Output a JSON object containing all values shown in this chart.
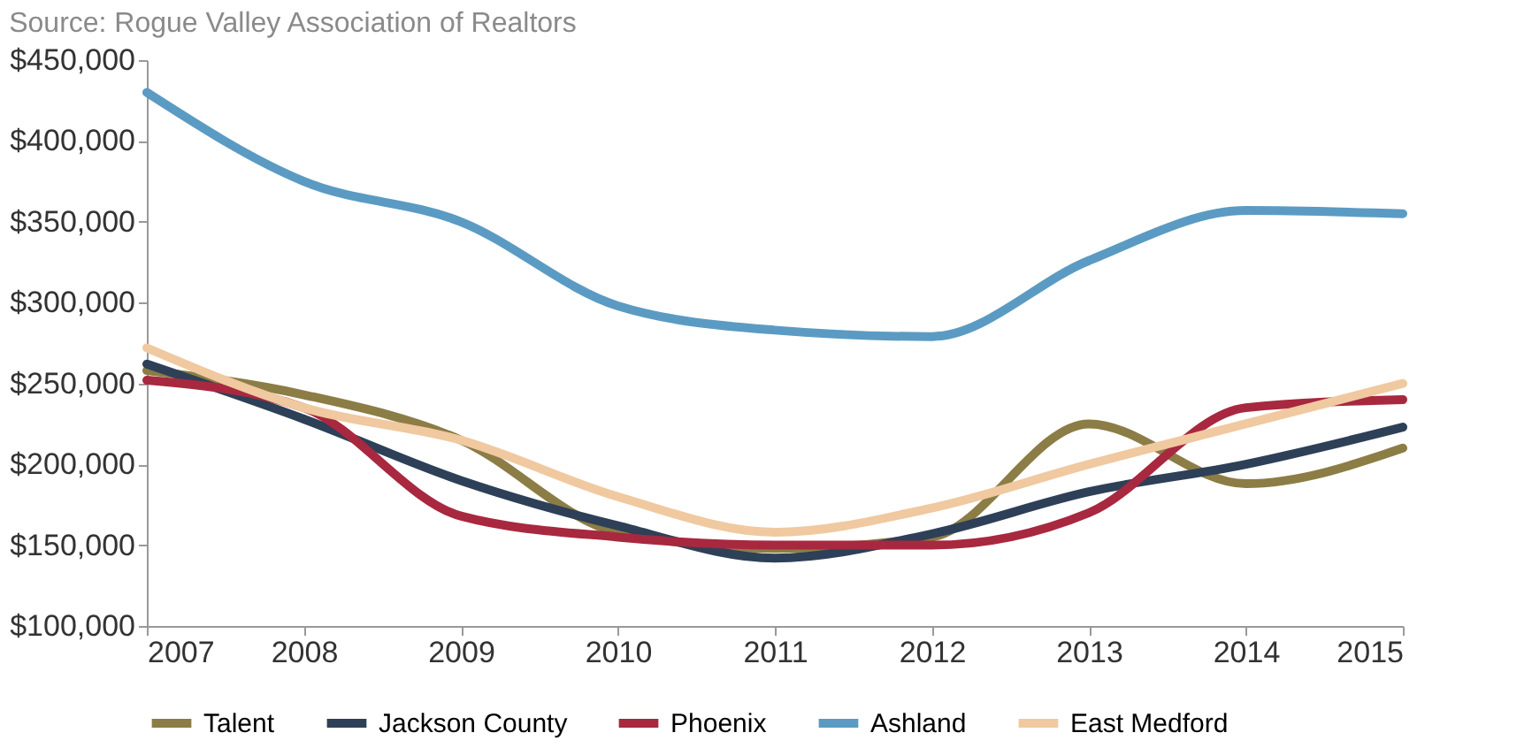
{
  "chart_data": {
    "type": "line",
    "annotations": [
      "Source: Rogue Valley Association of Realtors"
    ],
    "x": [
      2007,
      2008,
      2009,
      2010,
      2011,
      2012,
      2013,
      2014,
      2015
    ],
    "xlim": [
      2007,
      2015
    ],
    "xticks": [
      2007,
      2008,
      2009,
      2010,
      2011,
      2012,
      2013,
      2014,
      2015
    ],
    "ylim": [
      100000,
      450000
    ],
    "yticks": [
      {
        "value": 100000,
        "label": "$100,000"
      },
      {
        "value": 150000,
        "label": "$150,000"
      },
      {
        "value": 200000,
        "label": "$200,000"
      },
      {
        "value": 250000,
        "label": "$250,000"
      },
      {
        "value": 300000,
        "label": "$300,000"
      },
      {
        "value": 350000,
        "label": "$350,000"
      },
      {
        "value": 400000,
        "label": "$400,000"
      },
      {
        "value": 450000,
        "label": "$450,000"
      }
    ],
    "grid": false,
    "legend": "bottom",
    "line_style": "solid",
    "marker": "none",
    "series": [
      {
        "name": "Talent",
        "color": "#8b7d45",
        "values": [
          258000,
          243000,
          215000,
          158000,
          148000,
          155000,
          225000,
          188000,
          210000
        ]
      },
      {
        "name": "Jackson County",
        "color": "#2e4057",
        "values": [
          262000,
          228000,
          190000,
          162000,
          142000,
          157000,
          183000,
          200000,
          223000
        ]
      },
      {
        "name": "Phoenix",
        "color": "#a8283f",
        "values": [
          252000,
          235000,
          168000,
          155000,
          150000,
          150000,
          170000,
          235000,
          240000
        ]
      },
      {
        "name": "Ashland",
        "color": "#5b9bc3",
        "values": [
          430000,
          375000,
          350000,
          298000,
          283000,
          279000,
          326000,
          357000,
          355000
        ]
      },
      {
        "name": "East Medford",
        "color": "#f0c9a0",
        "values": [
          272000,
          235000,
          215000,
          180000,
          158000,
          173000,
          200000,
          225000,
          250000
        ]
      }
    ]
  }
}
